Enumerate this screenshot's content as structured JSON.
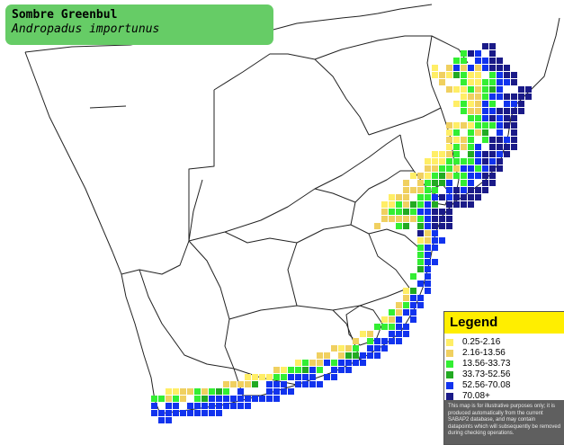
{
  "map": {
    "species_common": "Sombre Greenbul",
    "species_scientific": "Andropadus importunus"
  },
  "legend": {
    "title": "Legend",
    "classes": [
      {
        "label": "0.25-2.16",
        "color": "#ffee66"
      },
      {
        "label": "2.16-13.56",
        "color": "#f0d060"
      },
      {
        "label": "13.56-33.73",
        "color": "#33ee33"
      },
      {
        "label": "33.73-52.56",
        "color": "#22aa22"
      },
      {
        "label": "52.56-70.08",
        "color": "#1133ee"
      },
      {
        "label": "70.08+",
        "color": "#1a1a88"
      }
    ],
    "note": "This map is for illustrative purposes only; it is produced automatically from the current SABAP2 database, and may contain datapoints which will subsequently be removed during checking operations."
  }
}
